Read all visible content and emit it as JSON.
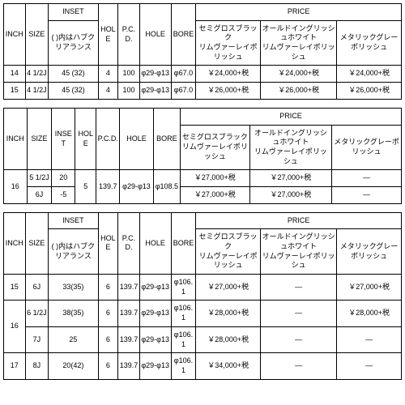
{
  "headers": {
    "inch": "INCH",
    "size": "SIZE",
    "inset": "INSET",
    "inset_sub": "( )内はハブクリアランス",
    "hole": "HOLE",
    "pcd": "P.C.D.",
    "hole2": "HOLE",
    "bore": "BORE",
    "price": "PRICE",
    "p1": "セミグロスブラック\nリムヴァーレイポリッシュ",
    "p2": "オールドイングリッシュホワイト\nリムヴァーレイポリッシュ",
    "p3": "メタリックグレーポリッシュ"
  },
  "t1": {
    "rows": [
      {
        "inch": "14",
        "size": "4 1/2J",
        "inset": "45 (32)",
        "hole": "4",
        "pcd": "100",
        "hole2": "φ29-φ13",
        "bore": "φ67.0",
        "p1": "￥24,000+税",
        "p2": "￥24,000+税",
        "p3": "￥24,000+税"
      },
      {
        "inch": "15",
        "size": "4 1/2J",
        "inset": "45 (32)",
        "hole": "4",
        "pcd": "100",
        "hole2": "φ29-φ13",
        "bore": "φ67.0",
        "p1": "￥26,000+税",
        "p2": "￥26,000+税",
        "p3": "￥26,000+税"
      }
    ]
  },
  "t2": {
    "inch": "16",
    "hole": "5",
    "pcd": "139.7",
    "hole2": "φ29-φ13",
    "bore": "φ108.5",
    "r1": {
      "size": "5 1/2J",
      "inset": "20",
      "p1": "￥27,000+税",
      "p2": "￥27,000+税",
      "p3": "—"
    },
    "r2": {
      "size": "6J",
      "inset": "-5",
      "p1": "￥27,000+税",
      "p2": "￥27,000+税",
      "p3": "—"
    }
  },
  "t3": {
    "rows": [
      {
        "inch": "15",
        "inch_rs": "1",
        "size": "6J",
        "inset": "33(35)",
        "hole": "6",
        "pcd": "139.7",
        "hole2": "φ29-φ13",
        "bore": "φ106.1",
        "p1": "￥27,000+税",
        "p2": "—",
        "p3": "￥27,000+税"
      },
      {
        "inch": "16",
        "inch_rs": "2",
        "size": "6 1/2J",
        "inset": "38(35)",
        "hole": "6",
        "pcd": "139.7",
        "hole2": "φ29-φ13",
        "bore": "φ106.1",
        "p1": "￥28,000+税",
        "p2": "—",
        "p3": "￥28,000+税"
      },
      {
        "inch": "",
        "inch_rs": "0",
        "size": "7J",
        "inset": "25",
        "hole": "6",
        "pcd": "139.7",
        "hole2": "φ29-φ13",
        "bore": "φ106.1",
        "p1": "￥28,000+税",
        "p2": "—",
        "p3": "—"
      },
      {
        "inch": "17",
        "inch_rs": "1",
        "size": "8J",
        "inset": "20(42)",
        "hole": "6",
        "pcd": "139.7",
        "hole2": "φ29-φ13",
        "bore": "φ106.1",
        "p1": "￥34,000+税",
        "p2": "—",
        "p3": "—"
      }
    ]
  }
}
